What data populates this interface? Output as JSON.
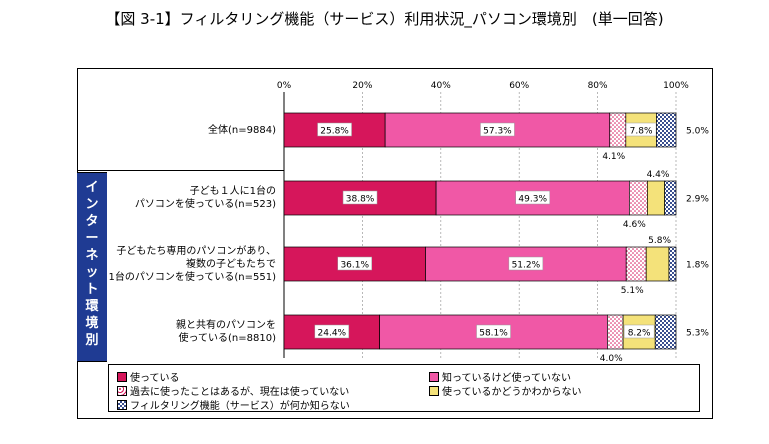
{
  "title": "【図 3-1】フィルタリング機能（サービス）利用状況_パソコン環境別　(単一回答)",
  "sidebar_label": "インターネット環境別",
  "colors": {
    "used": "#d6165b",
    "know_not_used": "#f058a6",
    "used_before": "#ffd6ea",
    "unknown_if_using": "#f4e27a",
    "dont_know_feature": "#8aa0cc"
  },
  "chart_data": {
    "type": "bar",
    "orientation": "horizontal",
    "stacked": true,
    "xlim": [
      0,
      100
    ],
    "x_ticks": [
      "0%",
      "20%",
      "40%",
      "60%",
      "80%",
      "100%"
    ],
    "grid": true,
    "legend_position": "bottom",
    "categories": [
      "全体(n=9884)",
      "子ども１人に1台のパソコンを使っている(n=523)",
      "子どもたち専用のパソコンがあり、複数の子どもたちで1台のパソコンを使っている(n=551)",
      "親と共有のパソコンを使っている(n=8810)"
    ],
    "category_lines": [
      [
        "全体(n=9884)"
      ],
      [
        "子ども１人に1台の",
        "パソコンを使っている(n=523)"
      ],
      [
        "子どもたち専用のパソコンがあり、",
        "複数の子どもたちで",
        "1台のパソコンを使っている(n=551)"
      ],
      [
        "親と共有のパソコンを",
        "使っている(n=8810)"
      ]
    ],
    "series": [
      {
        "name": "使っている",
        "values": [
          25.8,
          38.8,
          36.1,
          24.4
        ],
        "labels": [
          "25.8%",
          "38.8%",
          "36.1%",
          "24.4%"
        ]
      },
      {
        "name": "知っているけど使っていない",
        "values": [
          57.3,
          49.3,
          51.2,
          58.1
        ],
        "labels": [
          "57.3%",
          "49.3%",
          "51.2%",
          "58.1%"
        ]
      },
      {
        "name": "過去に使ったことはあるが、現在は使っていない",
        "values": [
          4.1,
          4.6,
          5.1,
          4.0
        ],
        "labels": [
          "4.1%",
          "4.6%",
          "5.1%",
          "4.0%"
        ]
      },
      {
        "name": "使っているかどうかわからない",
        "values": [
          7.8,
          4.4,
          5.8,
          8.2
        ],
        "labels": [
          "7.8%",
          "4.4%",
          "5.8%",
          "8.2%"
        ]
      },
      {
        "name": "フィルタリング機能（サービス）が何か知らない",
        "values": [
          5.0,
          2.9,
          1.8,
          5.3
        ],
        "labels": [
          "5.0%",
          "2.9%",
          "1.8%",
          "5.3%"
        ]
      }
    ]
  }
}
